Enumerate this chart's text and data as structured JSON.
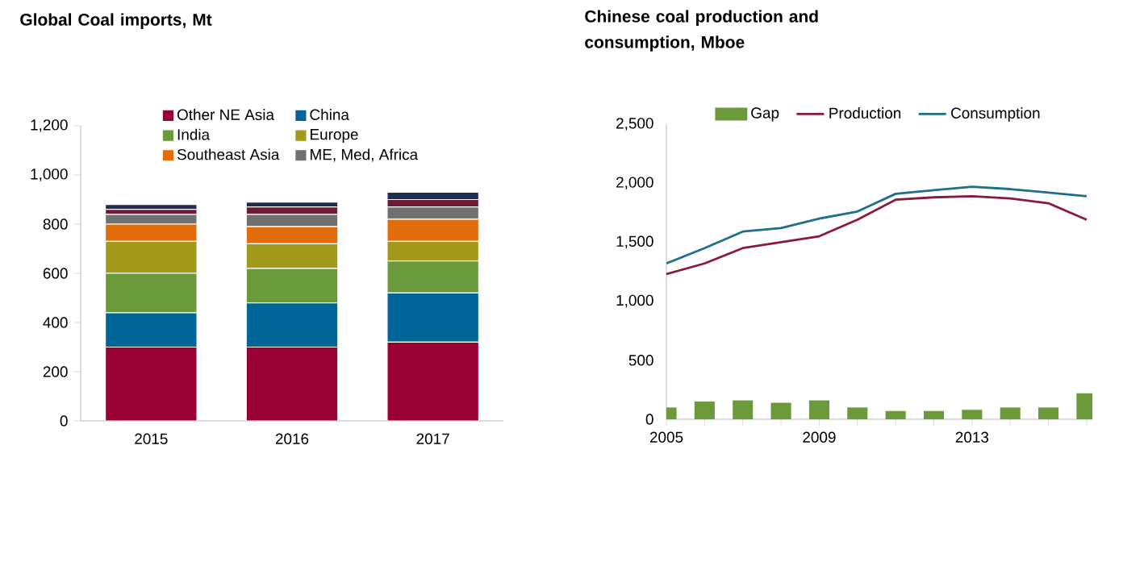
{
  "chart_data": [
    {
      "type": "bar",
      "title": "Global Coal imports, Mt",
      "categories": [
        "2015",
        "2016",
        "2017"
      ],
      "stacked": true,
      "series": [
        {
          "name": "Other NE Asia",
          "color": "#990033",
          "values": [
            300,
            300,
            320
          ]
        },
        {
          "name": "China",
          "color": "#00669a",
          "values": [
            140,
            180,
            200
          ]
        },
        {
          "name": "India",
          "color": "#6a9a3a",
          "values": [
            160,
            140,
            130
          ]
        },
        {
          "name": "Europe",
          "color": "#a39a1c",
          "values": [
            130,
            100,
            80
          ]
        },
        {
          "name": "Southeast Asia",
          "color": "#e36c0a",
          "values": [
            70,
            70,
            90
          ]
        },
        {
          "name": "ME, Med, Africa",
          "color": "#707070",
          "values": [
            40,
            50,
            50
          ]
        },
        {
          "color": "#6d1a36",
          "values": [
            20,
            30,
            30
          ]
        },
        {
          "color": "#1f2d4e",
          "values": [
            20,
            20,
            30
          ]
        }
      ],
      "ylim": [
        0,
        1200
      ],
      "yticks": [
        0,
        200,
        400,
        600,
        800,
        {
          "value": 1000,
          "label": "1,000"
        },
        {
          "value": 1200,
          "label": "1,200"
        }
      ],
      "legend": "top",
      "grid": false
    },
    {
      "type": "line",
      "title": "Chinese coal production and consumption, Mboe",
      "x": [
        2005,
        2006,
        2007,
        2008,
        2009,
        2010,
        2011,
        2012,
        2013,
        2014,
        2015,
        2016
      ],
      "series": [
        {
          "name": "Gap",
          "type": "bar",
          "color": "#6a9a3a",
          "values": [
            100,
            150,
            160,
            140,
            160,
            100,
            70,
            70,
            80,
            100,
            100,
            220
          ]
        },
        {
          "name": "Production",
          "color": "#8b1a3a",
          "values": [
            1230,
            1320,
            1450,
            1500,
            1550,
            1690,
            1860,
            1880,
            1890,
            1870,
            1830,
            1690
          ]
        },
        {
          "name": "Consumption",
          "color": "#1f6e8c",
          "values": [
            1320,
            1450,
            1590,
            1620,
            1700,
            1760,
            1910,
            1940,
            1970,
            1950,
            1920,
            1890
          ]
        }
      ],
      "xlim": [
        2005,
        2016.15
      ],
      "xticks": [
        2005,
        {
          "value": 2006,
          "label": null
        },
        {
          "value": 2007,
          "label": null
        },
        {
          "value": 2008,
          "label": null
        },
        2009,
        {
          "value": 2010,
          "label": null
        },
        {
          "value": 2011,
          "label": null
        },
        {
          "value": 2012,
          "label": null
        },
        2013,
        {
          "value": 2014,
          "label": null
        },
        {
          "value": 2015,
          "label": null
        },
        {
          "value": 2016,
          "label": null
        }
      ],
      "ylim": [
        0,
        2500
      ],
      "yticks": [
        0,
        500,
        {
          "value": 1000,
          "label": "1,000"
        },
        {
          "value": 1500,
          "label": "1,500"
        },
        {
          "value": 2000,
          "label": "2,000"
        },
        {
          "value": 2500,
          "label": "2,500"
        }
      ],
      "legend": "top",
      "grid": false
    }
  ]
}
